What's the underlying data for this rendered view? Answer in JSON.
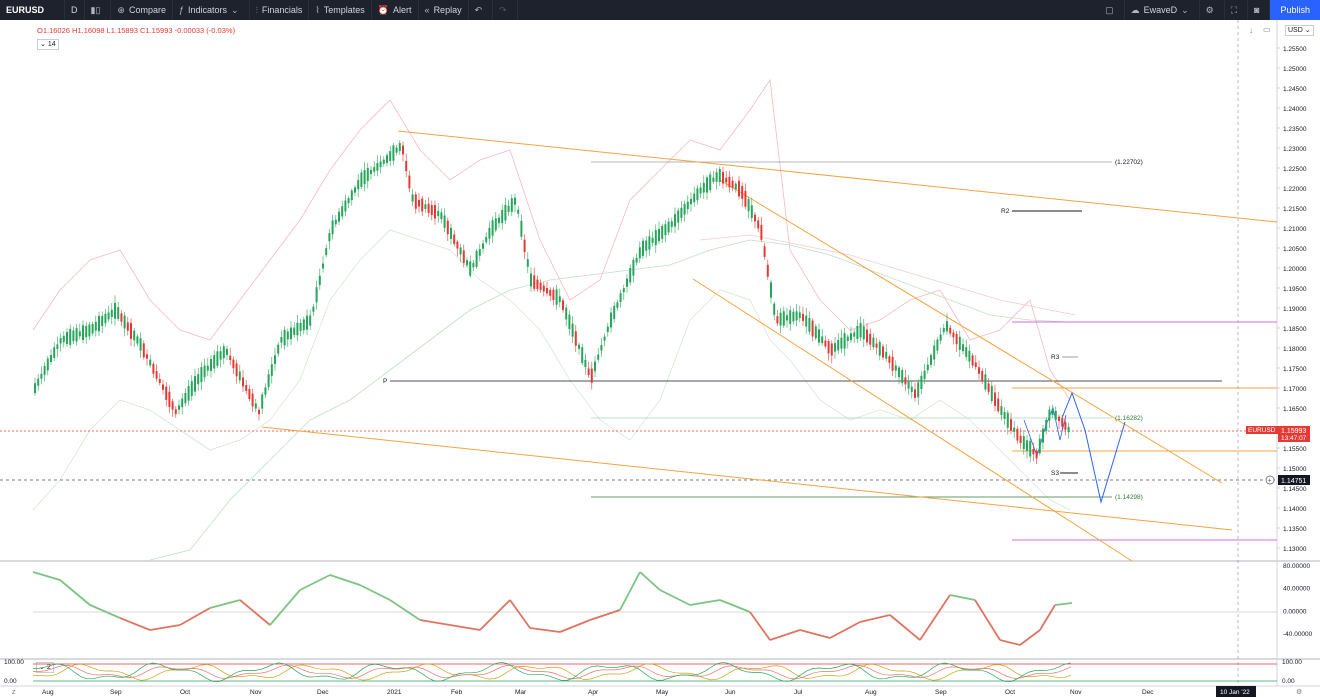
{
  "toolbar": {
    "symbol": "EURUSD",
    "interval": "D",
    "compare_label": "Compare",
    "indicators_label": "Indicators",
    "financials_label": "Financials",
    "templates_label": "Templates",
    "alert_label": "Alert",
    "replay_label": "Replay",
    "layout_name": "EwaveD",
    "publish_label": "Publish"
  },
  "legend": {
    "ohlc": "O1.16026  H1.16098  L1.15893  C1.15993  -0.00033 (-0.03%)",
    "indicator_param": "14",
    "osc_param": "2"
  },
  "price_scale": {
    "currency": "USD",
    "ticks": [
      "1.25500",
      "1.25000",
      "1.24500",
      "1.24000",
      "1.23500",
      "1.23000",
      "1.22500",
      "1.22000",
      "1.21500",
      "1.21000",
      "1.20500",
      "1.20000",
      "1.19500",
      "1.19000",
      "1.18500",
      "1.18000",
      "1.17500",
      "1.17000",
      "1.16500",
      "1.16000",
      "1.15500",
      "1.15000",
      "1.14500",
      "1.14000",
      "1.13500",
      "1.13000"
    ],
    "current_price_label": "EURUSD",
    "current_price": "1.15993",
    "countdown": "13:47:07",
    "crosshair_price": "1.14751"
  },
  "annotations": {
    "level_top": "(1.22702)",
    "level_mid": "(1.16282)",
    "level_bottom": "(1.14298)",
    "r2": "R2",
    "r3": "R3",
    "p": "P",
    "s3": "S3"
  },
  "oscillator_scale": [
    "80.00000",
    "40.00000",
    "0.00000",
    "-40.00000"
  ],
  "bottom_pane_scale": {
    "top": "100.00",
    "bottom": "0.00",
    "right_top": "100.00",
    "right_bottom": "0.00"
  },
  "time_axis": {
    "labels": [
      "Aug",
      "Sep",
      "Oct",
      "Nov",
      "Dec",
      "2021",
      "Feb",
      "Mar",
      "Apr",
      "May",
      "Jun",
      "Jul",
      "Aug",
      "Sep",
      "Oct",
      "Nov",
      "Dec"
    ],
    "crosshair_date": "10 Jan '22"
  },
  "colors": {
    "up": "#26a65b",
    "down": "#e53935",
    "toolbar_bg": "#1e222d",
    "accent": "#2962ff",
    "orange": "#f5a340",
    "magenta": "#d36ee0"
  }
}
